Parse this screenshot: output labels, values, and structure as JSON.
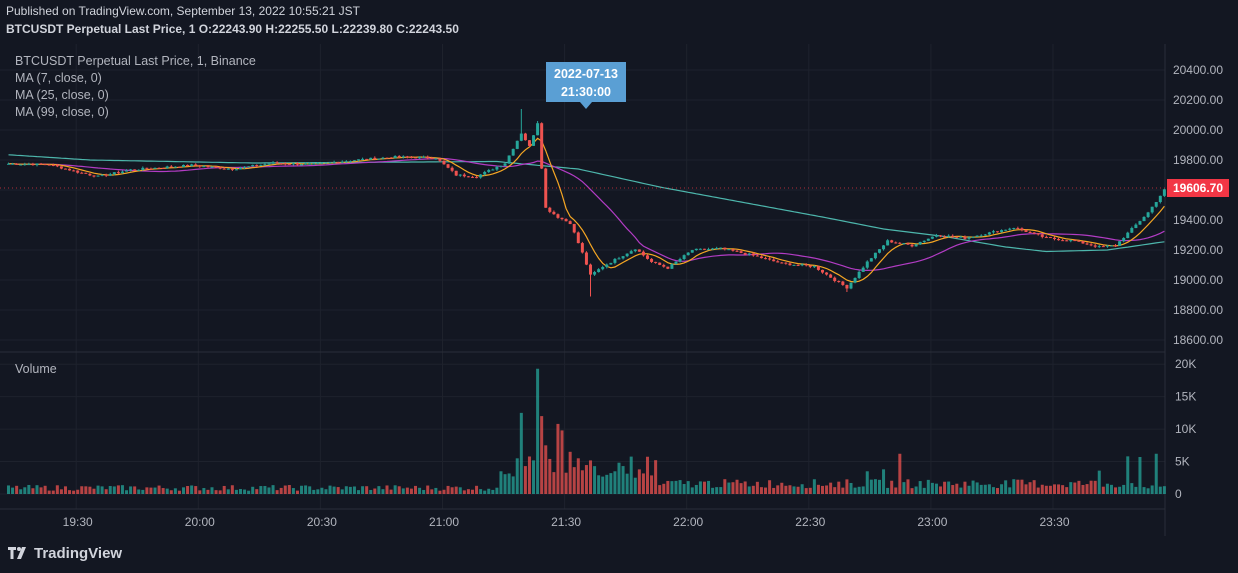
{
  "header": {
    "published": "Published on TradingView.com, September 13, 2022 10:55:21 JST",
    "ohlc": "BTCUSDT Perpetual Last Price, 1  O:22243.90  H:22255.50  L:22239.80  C:22243.50"
  },
  "legend": [
    "BTCUSDT Perpetual Last Price, 1, Binance",
    "MA (7, close, 0)",
    "MA (25, close, 0)",
    "MA (99, close, 0)"
  ],
  "volume_label": "Volume",
  "tooltip": {
    "date": "2022-07-13",
    "time": "21:30:00"
  },
  "last_price": "19606.70",
  "brand": "TradingView",
  "colors": {
    "up": "#26a69a",
    "down": "#ef5350",
    "ma7": "#f5a623",
    "ma25": "#b23cc4",
    "ma99": "#4db6ac",
    "last": "#f23645"
  },
  "chart_data": {
    "type": "candlestick",
    "price_axis": {
      "ticks": [
        18600,
        18800,
        19000,
        19200,
        19400,
        19600,
        19800,
        20000,
        20200,
        20400
      ],
      "tick_labels": [
        "18600.00",
        "18800.00",
        "19000.00",
        "19200.00",
        "19400.00",
        "19600.00",
        "19800.00",
        "20000.00",
        "20200.00",
        "20400.00"
      ]
    },
    "volume_axis": {
      "ticks": [
        0,
        5000,
        10000,
        15000,
        20000
      ],
      "tick_labels": [
        "0",
        "5K",
        "10K",
        "15K",
        "20K"
      ]
    },
    "time_axis": {
      "labels": [
        "19:30",
        "20:00",
        "20:30",
        "21:00",
        "21:30",
        "22:00",
        "22:30",
        "23:00",
        "23:30"
      ],
      "start": "19:13",
      "end": "23:57",
      "interval_min": 1
    },
    "close_path": [
      {
        "t": 0,
        "v": 19775
      },
      {
        "t": 10,
        "v": 19770
      },
      {
        "t": 17,
        "v": 19720
      },
      {
        "t": 22,
        "v": 19690
      },
      {
        "t": 30,
        "v": 19735
      },
      {
        "t": 45,
        "v": 19765
      },
      {
        "t": 55,
        "v": 19740
      },
      {
        "t": 65,
        "v": 19780
      },
      {
        "t": 75,
        "v": 19770
      },
      {
        "t": 85,
        "v": 19800
      },
      {
        "t": 95,
        "v": 19820
      },
      {
        "t": 105,
        "v": 19815
      },
      {
        "t": 110,
        "v": 19700
      },
      {
        "t": 115,
        "v": 19690
      },
      {
        "t": 122,
        "v": 19780
      },
      {
        "t": 126,
        "v": 19980
      },
      {
        "t": 128,
        "v": 19890
      },
      {
        "t": 130,
        "v": 20050
      },
      {
        "t": 131,
        "v": 19750
      },
      {
        "t": 132,
        "v": 19480
      },
      {
        "t": 135,
        "v": 19420
      },
      {
        "t": 138,
        "v": 19380
      },
      {
        "t": 141,
        "v": 19180
      },
      {
        "t": 143,
        "v": 19030
      },
      {
        "t": 146,
        "v": 19090
      },
      {
        "t": 150,
        "v": 19150
      },
      {
        "t": 154,
        "v": 19210
      },
      {
        "t": 158,
        "v": 19120
      },
      {
        "t": 162,
        "v": 19080
      },
      {
        "t": 168,
        "v": 19200
      },
      {
        "t": 175,
        "v": 19210
      },
      {
        "t": 182,
        "v": 19170
      },
      {
        "t": 190,
        "v": 19110
      },
      {
        "t": 198,
        "v": 19090
      },
      {
        "t": 203,
        "v": 19000
      },
      {
        "t": 206,
        "v": 18950
      },
      {
        "t": 211,
        "v": 19120
      },
      {
        "t": 216,
        "v": 19260
      },
      {
        "t": 222,
        "v": 19230
      },
      {
        "t": 228,
        "v": 19300
      },
      {
        "t": 235,
        "v": 19280
      },
      {
        "t": 242,
        "v": 19320
      },
      {
        "t": 247,
        "v": 19350
      },
      {
        "t": 255,
        "v": 19280
      },
      {
        "t": 262,
        "v": 19260
      },
      {
        "t": 268,
        "v": 19220
      },
      {
        "t": 272,
        "v": 19230
      },
      {
        "t": 276,
        "v": 19340
      },
      {
        "t": 280,
        "v": 19450
      },
      {
        "t": 284,
        "v": 19600
      }
    ],
    "ma99_path": [
      {
        "t": 0,
        "v": 19835
      },
      {
        "t": 20,
        "v": 19800
      },
      {
        "t": 60,
        "v": 19780
      },
      {
        "t": 120,
        "v": 19790
      },
      {
        "t": 140,
        "v": 19740
      },
      {
        "t": 160,
        "v": 19620
      },
      {
        "t": 180,
        "v": 19520
      },
      {
        "t": 200,
        "v": 19420
      },
      {
        "t": 215,
        "v": 19340
      },
      {
        "t": 230,
        "v": 19290
      },
      {
        "t": 245,
        "v": 19220
      },
      {
        "t": 255,
        "v": 19190
      },
      {
        "t": 270,
        "v": 19200
      },
      {
        "t": 284,
        "v": 19255
      }
    ],
    "volume_peaks": [
      {
        "t": 126,
        "v": 12500
      },
      {
        "t": 130,
        "v": 19300
      },
      {
        "t": 131,
        "v": 12000
      },
      {
        "t": 132,
        "v": 7500
      },
      {
        "t": 135,
        "v": 10800
      },
      {
        "t": 136,
        "v": 9800
      },
      {
        "t": 138,
        "v": 6500
      },
      {
        "t": 140,
        "v": 5500
      },
      {
        "t": 149,
        "v": 3500
      },
      {
        "t": 211,
        "v": 3500
      },
      {
        "t": 215,
        "v": 3800
      },
      {
        "t": 219,
        "v": 6200
      },
      {
        "t": 268,
        "v": 3600
      },
      {
        "t": 275,
        "v": 5800
      },
      {
        "t": 278,
        "v": 5700
      },
      {
        "t": 282,
        "v": 6200
      }
    ]
  }
}
